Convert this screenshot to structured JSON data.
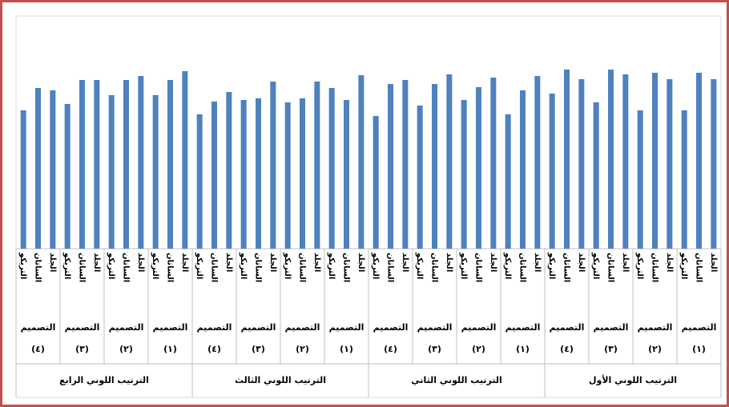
{
  "chart_data": {
    "type": "bar",
    "color": "#4f81bd",
    "groups": [
      {
        "label": "الترتيب اللوني الرابع",
        "designs": [
          {
            "label": "التصميم",
            "number": "(٤)",
            "categories": [
              "التريكو",
              "الساتان",
              "الجلد"
            ],
            "values": [
              173,
              201,
              198
            ]
          },
          {
            "label": "التصميم",
            "number": "(٣)",
            "categories": [
              "التريكو",
              "الساتان",
              "الجلد"
            ],
            "values": [
              181,
              211,
              211
            ]
          },
          {
            "label": "التصميم",
            "number": "(٢)",
            "categories": [
              "التريكو",
              "الساتان",
              "الجلد"
            ],
            "values": [
              192,
              211,
              216
            ]
          },
          {
            "label": "التصميم",
            "number": "(١)",
            "categories": [
              "التريكو",
              "الساتان",
              "الجلد"
            ],
            "values": [
              192,
              211,
              222
            ]
          }
        ]
      },
      {
        "label": "الترتيب اللوني الثالث",
        "designs": [
          {
            "label": "التصميم",
            "number": "(٤)",
            "categories": [
              "التريكو",
              "الساتان",
              "الجلد"
            ],
            "values": [
              168,
              184,
              196
            ]
          },
          {
            "label": "التصميم",
            "number": "(٣)",
            "categories": [
              "التريكو",
              "الساتان",
              "الجلد"
            ],
            "values": [
              186,
              188,
              209
            ]
          },
          {
            "label": "التصميم",
            "number": "(٢)",
            "categories": [
              "التريكو",
              "الساتان",
              "الجلد"
            ],
            "values": [
              183,
              188,
              209
            ]
          },
          {
            "label": "التصميم",
            "number": "(١)",
            "categories": [
              "التريكو",
              "الساتان",
              "الجلد"
            ],
            "values": [
              201,
              186,
              217
            ]
          }
        ]
      },
      {
        "label": "الترتيب اللوني الثاني",
        "designs": [
          {
            "label": "التصميم",
            "number": "(٤)",
            "categories": [
              "التريكو",
              "الساتان",
              "الجلد"
            ],
            "values": [
              166,
              206,
              211
            ]
          },
          {
            "label": "التصميم",
            "number": "(٣)",
            "categories": [
              "التريكو",
              "الساتان",
              "الجلد"
            ],
            "values": [
              179,
              206,
              218
            ]
          },
          {
            "label": "التصميم",
            "number": "(٢)",
            "categories": [
              "التريكو",
              "الساتان",
              "الجلد"
            ],
            "values": [
              186,
              202,
              214
            ]
          },
          {
            "label": "التصميم",
            "number": "(١)",
            "categories": [
              "التريكو",
              "الساتان",
              "الجلد"
            ],
            "values": [
              168,
              198,
              216
            ]
          }
        ]
      },
      {
        "label": "الترتيب اللوني الأول",
        "designs": [
          {
            "label": "التصميم",
            "number": "(٤)",
            "categories": [
              "التريكو",
              "الساتان",
              "الجلد"
            ],
            "values": [
              194,
              224,
              212
            ]
          },
          {
            "label": "التصميم",
            "number": "(٣)",
            "categories": [
              "التريكو",
              "الساتان",
              "الجلد"
            ],
            "values": [
              183,
              224,
              218
            ]
          },
          {
            "label": "التصميم",
            "number": "(٢)",
            "categories": [
              "التريكو",
              "الساتان",
              "الجلد"
            ],
            "values": [
              173,
              220,
              212
            ]
          },
          {
            "label": "التصميم",
            "number": "(١)",
            "categories": [
              "التريكو",
              "الساتان",
              "الجلد"
            ],
            "values": [
              173,
              220,
              212
            ]
          }
        ]
      }
    ]
  }
}
